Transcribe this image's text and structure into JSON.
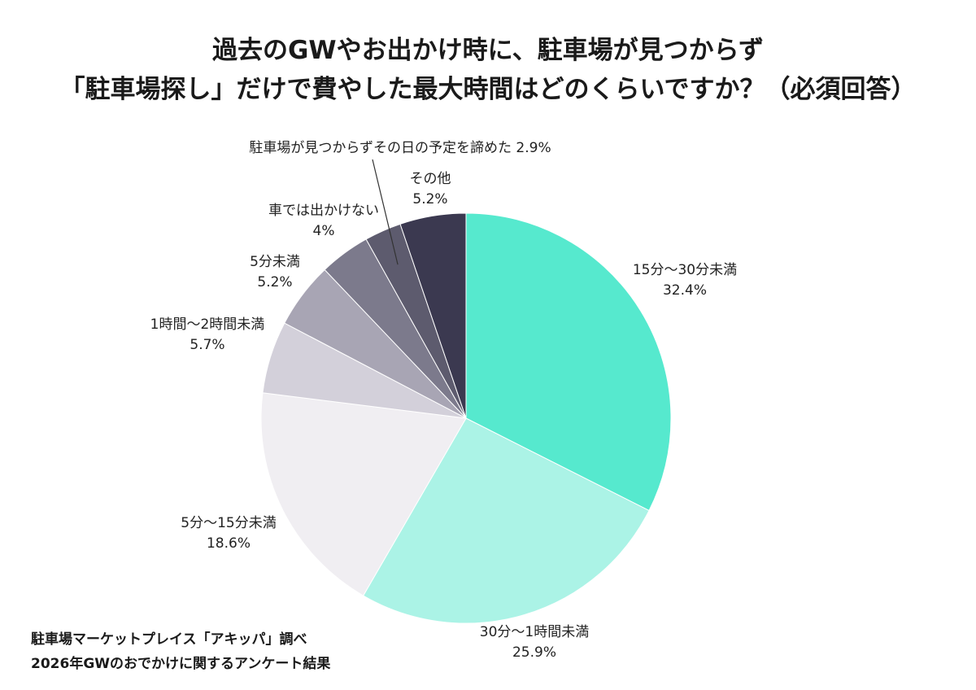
{
  "title": {
    "line1": "過去のGWやお出かけ時に、駐車場が見つからず",
    "line2": "「駐車場探し」だけで費やした最大時間はどのくらいですか？（必須回答）"
  },
  "source": {
    "line1": "駐車場マーケットプレイス「アキッパ」調べ",
    "line2": "2026年GWのおでかけに関するアンケート結果"
  },
  "chart_data": {
    "type": "pie",
    "title": "過去のGWやお出かけ時に、駐車場が見つからず「駐車場探し」だけで費やした最大時間はどのくらいですか？（必須回答）",
    "start": "12 o'clock, clockwise",
    "slices": [
      {
        "label": "15分〜30分未満",
        "value": 32.4,
        "value_text": "32.4%",
        "color": "#56e9ce"
      },
      {
        "label": "30分〜1時間未満",
        "value": 25.9,
        "value_text": "25.9%",
        "color": "#abf3e6"
      },
      {
        "label": "5分〜15分未満",
        "value": 18.6,
        "value_text": "18.6%",
        "color": "#f0eef2"
      },
      {
        "label": "1時間〜2時間未満",
        "value": 5.7,
        "value_text": "5.7%",
        "color": "#d3d0da"
      },
      {
        "label": "5分未満",
        "value": 5.2,
        "value_text": "5.2%",
        "color": "#a8a5b4"
      },
      {
        "label": "車では出かけない",
        "value": 4.0,
        "value_text": "4%",
        "color": "#7c7a8c"
      },
      {
        "label": "駐車場が見つからずその日の予定を諦めた",
        "value": 2.9,
        "value_text": "2.9%",
        "color": "#5d5b6e"
      },
      {
        "label": "その他",
        "value": 5.2,
        "value_text": "5.2%",
        "color": "#3b3950"
      }
    ]
  }
}
